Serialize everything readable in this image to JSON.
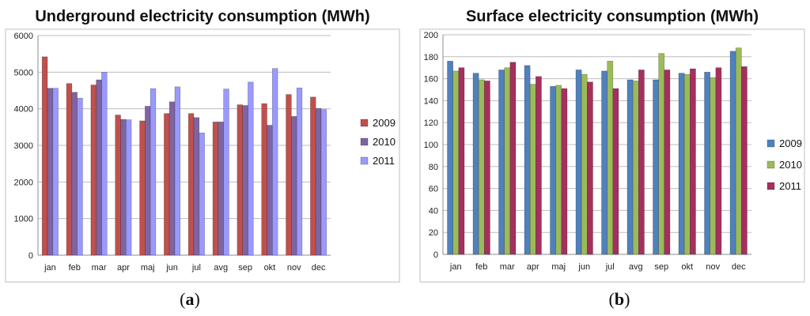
{
  "chart_data": [
    {
      "type": "bar",
      "title": "Underground electricity consumption (MWh)",
      "caption_label": "a",
      "xlabel": "",
      "ylabel": "",
      "ylim": [
        0,
        6000
      ],
      "ytick_step": 1000,
      "yticks": [
        "0",
        "1000",
        "2000",
        "3000",
        "4000",
        "5000",
        "6000"
      ],
      "grid": true,
      "legend_position": "right",
      "categories": [
        "jan",
        "feb",
        "mar",
        "apr",
        "maj",
        "jun",
        "jul",
        "avg",
        "sep",
        "okt",
        "nov",
        "dec"
      ],
      "series": [
        {
          "name": "2009",
          "color": "#c0504d",
          "values": [
            5420,
            4690,
            4650,
            3830,
            3670,
            3870,
            3870,
            3640,
            4110,
            4140,
            4390,
            4320
          ]
        },
        {
          "name": "2010",
          "color": "#8064a2",
          "values": [
            4560,
            4450,
            4790,
            3710,
            4070,
            4190,
            3760,
            3640,
            4090,
            3550,
            3790,
            4010
          ]
        },
        {
          "name": "2011",
          "color": "#9999ff",
          "values": [
            4560,
            4290,
            5000,
            3700,
            4550,
            4600,
            3340,
            4540,
            4730,
            5100,
            4570,
            3980
          ]
        }
      ]
    },
    {
      "type": "bar",
      "title": "Surface electricity consumption (MWh)",
      "caption_label": "b",
      "xlabel": "",
      "ylabel": "",
      "ylim": [
        0,
        200
      ],
      "ytick_step": 20,
      "yticks": [
        "0",
        "20",
        "40",
        "60",
        "80",
        "100",
        "120",
        "140",
        "160",
        "180",
        "200"
      ],
      "grid": true,
      "legend_position": "right",
      "categories": [
        "jan",
        "feb",
        "mar",
        "apr",
        "maj",
        "jun",
        "jul",
        "avg",
        "sep",
        "okt",
        "nov",
        "dec"
      ],
      "series": [
        {
          "name": "2009",
          "color": "#4f81bd",
          "values": [
            176,
            165,
            168,
            172,
            153,
            168,
            167,
            159,
            159,
            165,
            166,
            185
          ]
        },
        {
          "name": "2010",
          "color": "#9bbb59",
          "values": [
            167,
            159,
            170,
            155,
            154,
            164,
            176,
            158,
            183,
            164,
            161,
            188
          ]
        },
        {
          "name": "2011",
          "color": "#a5305e",
          "values": [
            170,
            158,
            175,
            162,
            151,
            157,
            151,
            168,
            168,
            169,
            170,
            171
          ]
        }
      ]
    }
  ]
}
